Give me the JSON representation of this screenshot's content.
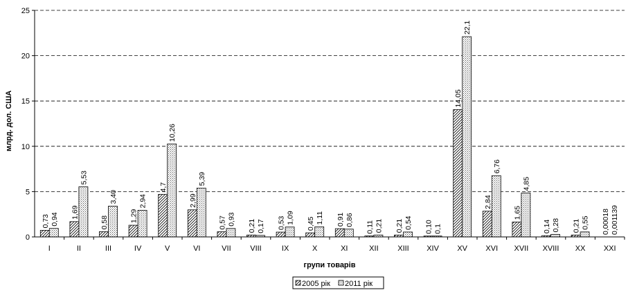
{
  "chart_data": {
    "type": "bar",
    "title": "",
    "xlabel": "групи товарів",
    "ylabel": "млрд. дол. США",
    "ylim": [
      0,
      25
    ],
    "yticks": [
      0,
      5,
      10,
      15,
      20,
      25
    ],
    "grid": "dashed horizontal",
    "legend_position": "bottom",
    "categories": [
      "I",
      "II",
      "III",
      "IV",
      "V",
      "VI",
      "VII",
      "VIII",
      "IX",
      "X",
      "XI",
      "XII",
      "XIII",
      "XIV",
      "XV",
      "XVI",
      "XVII",
      "XVIII",
      "XX",
      "XXI"
    ],
    "series": [
      {
        "name": "2005 рік",
        "values": [
          0.73,
          1.69,
          0.58,
          1.29,
          4.7,
          2.99,
          0.57,
          0.21,
          0.53,
          0.45,
          0.91,
          0.11,
          0.21,
          0.1,
          14.05,
          2.84,
          1.65,
          0.14,
          0.21,
          0.00018
        ],
        "labels": [
          "0,73",
          "1,69",
          "0,58",
          "1,29",
          "4,7",
          "2,99",
          "0,57",
          "0,21",
          "0,53",
          "0,45",
          "0,91",
          "0,11",
          "0,21",
          "0,10",
          "14,05",
          "2,84",
          "1,65",
          "0,14",
          "0,21",
          "0,00018"
        ],
        "pattern": "diagonal"
      },
      {
        "name": "2011 рік",
        "values": [
          0.94,
          5.53,
          3.4,
          2.94,
          10.26,
          5.39,
          0.93,
          0.17,
          1.09,
          1.11,
          0.86,
          0.21,
          0.54,
          0.1,
          22.1,
          6.76,
          4.85,
          0.28,
          0.55,
          0.001139
        ],
        "labels": [
          "0,94",
          "5,53",
          "3,40",
          "2,94",
          "10,26",
          "5,39",
          "0,93",
          "0,17",
          "1,09",
          "1,11",
          "0,86",
          "0,21",
          "0,54",
          "0,1",
          "22,1",
          "6,76",
          "4,85",
          "0,28",
          "0,55",
          "0,001139"
        ],
        "pattern": "dots"
      }
    ]
  }
}
